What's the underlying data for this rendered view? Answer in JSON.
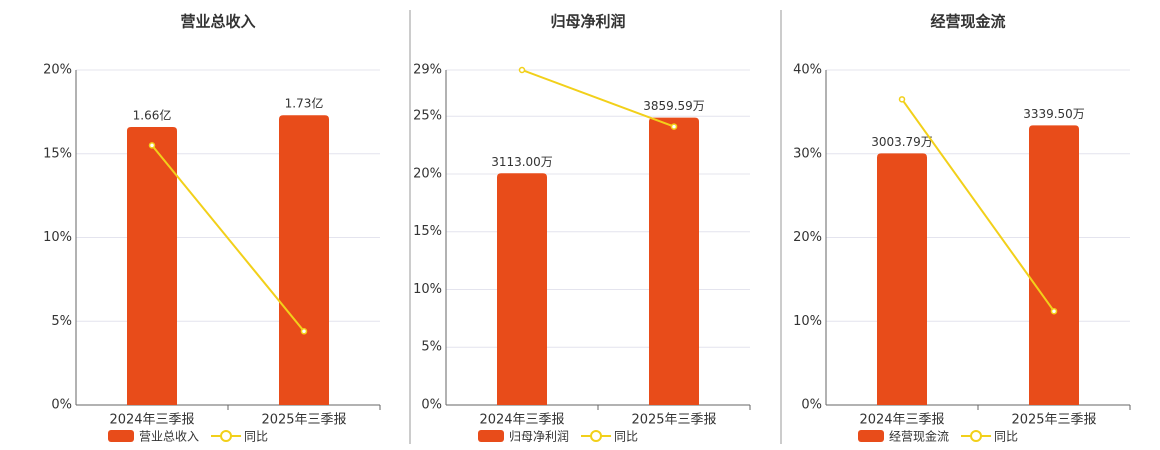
{
  "chart_data": [
    {
      "type": "bar",
      "title": "营业总收入",
      "categories": [
        "2024年三季报",
        "2025年三季报"
      ],
      "series": [
        {
          "name": "营业总收入",
          "color": "#e84c1a",
          "type": "bar",
          "axis": "y2",
          "values": [
            1.66,
            1.73
          ],
          "value_labels": [
            "1.66亿",
            "1.73亿"
          ]
        },
        {
          "name": "同比",
          "color": "#f2d01a",
          "type": "line",
          "values": [
            15.5,
            4.4
          ]
        }
      ],
      "ylim": [
        0,
        20
      ],
      "yticks": [
        {
          "value": 0,
          "label": "0%"
        },
        {
          "value": 5,
          "label": "5%"
        },
        {
          "value": 10,
          "label": "10%"
        },
        {
          "value": 15,
          "label": "15%"
        },
        {
          "value": 20,
          "label": "20%"
        }
      ],
      "y2lim": [
        0,
        2
      ],
      "grid": true
    },
    {
      "type": "bar",
      "title": "归母净利润",
      "categories": [
        "2024年三季报",
        "2025年三季报"
      ],
      "series": [
        {
          "name": "归母净利润",
          "color": "#e84c1a",
          "type": "bar",
          "axis": "y2",
          "values": [
            3113.0,
            3859.59
          ],
          "value_labels": [
            "3113.00万",
            "3859.59万"
          ]
        },
        {
          "name": "同比",
          "color": "#f2d01a",
          "type": "line",
          "values": [
            29,
            24.1
          ]
        }
      ],
      "ylim": [
        0,
        29
      ],
      "yticks": [
        {
          "value": 0,
          "label": "0%"
        },
        {
          "value": 5,
          "label": "5%"
        },
        {
          "value": 10,
          "label": "10%"
        },
        {
          "value": 15,
          "label": "15%"
        },
        {
          "value": 20,
          "label": "20%"
        },
        {
          "value": 25,
          "label": "25%"
        },
        {
          "value": 29,
          "label": "29%"
        }
      ],
      "y2lim": [
        0,
        4500
      ],
      "grid": true
    },
    {
      "type": "bar",
      "title": "经营现金流",
      "categories": [
        "2024年三季报",
        "2025年三季报"
      ],
      "series": [
        {
          "name": "经营现金流",
          "color": "#e84c1a",
          "type": "bar",
          "axis": "y2",
          "values": [
            3003.79,
            3339.5
          ],
          "value_labels": [
            "3003.79万",
            "3339.50万"
          ]
        },
        {
          "name": "同比",
          "color": "#f2d01a",
          "type": "line",
          "values": [
            36.5,
            11.2
          ]
        }
      ],
      "ylim": [
        0,
        40
      ],
      "yticks": [
        {
          "value": 0,
          "label": "0%"
        },
        {
          "value": 10,
          "label": "10%"
        },
        {
          "value": 20,
          "label": "20%"
        },
        {
          "value": 30,
          "label": "30%"
        },
        {
          "value": 40,
          "label": "40%"
        }
      ],
      "y2lim": [
        0,
        4000
      ],
      "grid": true
    }
  ]
}
